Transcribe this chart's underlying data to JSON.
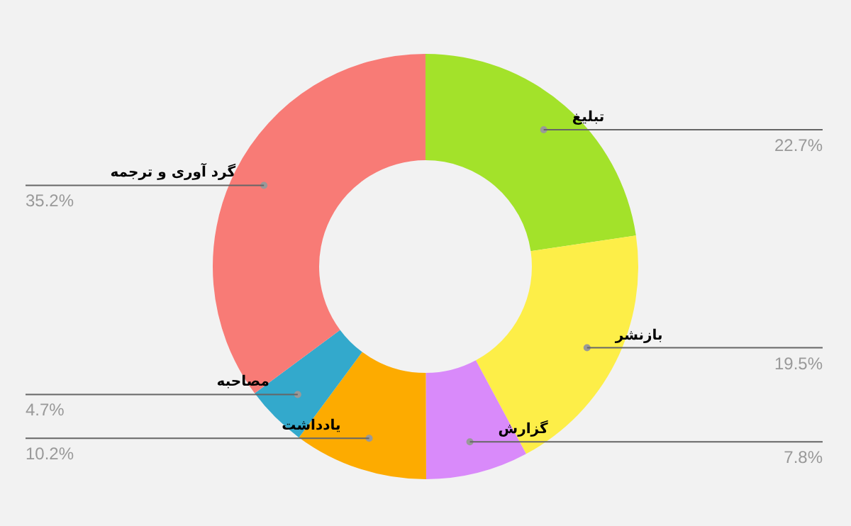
{
  "chart_data": {
    "type": "donut",
    "categories": [
      "تبلیغ",
      "بازنشر",
      "گزارش",
      "یادداشت",
      "مصاحبه",
      "گرد آوری و ترجمه"
    ],
    "values": [
      22.7,
      19.5,
      7.8,
      10.2,
      4.7,
      35.2
    ],
    "value_labels": [
      "22.7%",
      "19.5%",
      "7.8%",
      "10.2%",
      "4.7%",
      "35.2%"
    ],
    "colors": [
      "#a3e22a",
      "#fdee48",
      "#d98afa",
      "#fdab00",
      "#33a9cc",
      "#f87b76"
    ]
  }
}
